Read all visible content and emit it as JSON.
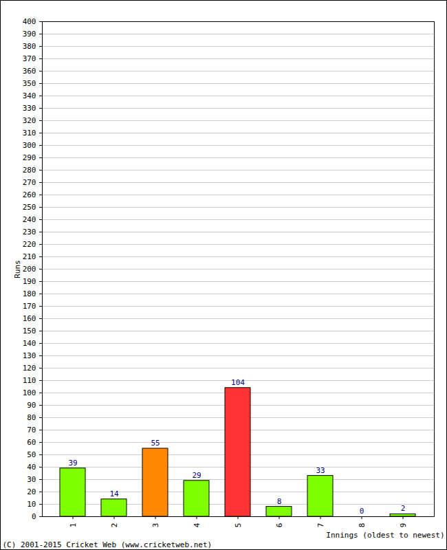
{
  "chart_data": {
    "type": "bar",
    "caption": "(C) 2001-2015 Cricket Web (www.cricketweb.net)",
    "x_label": "Innings (oldest to newest)",
    "y_label": "Runs",
    "categories": [
      "1",
      "2",
      "3",
      "4",
      "5",
      "6",
      "7",
      "8",
      "9"
    ],
    "values": [
      39,
      14,
      55,
      29,
      104,
      8,
      33,
      0,
      2
    ],
    "colors": [
      "#80ff00",
      "#80ff00",
      "#ff8800",
      "#80ff00",
      "#ff3333",
      "#80ff00",
      "#80ff00",
      "#80ff00",
      "#80ff00"
    ],
    "ylim": [
      0,
      400
    ],
    "yticks": [
      0,
      10,
      20,
      30,
      40,
      50,
      60,
      70,
      80,
      90,
      100,
      110,
      120,
      130,
      140,
      150,
      160,
      170,
      180,
      190,
      200,
      210,
      220,
      230,
      240,
      250,
      260,
      270,
      280,
      290,
      300,
      310,
      320,
      330,
      340,
      350,
      360,
      370,
      380,
      390,
      400
    ],
    "grid": true,
    "data_labels": true
  }
}
